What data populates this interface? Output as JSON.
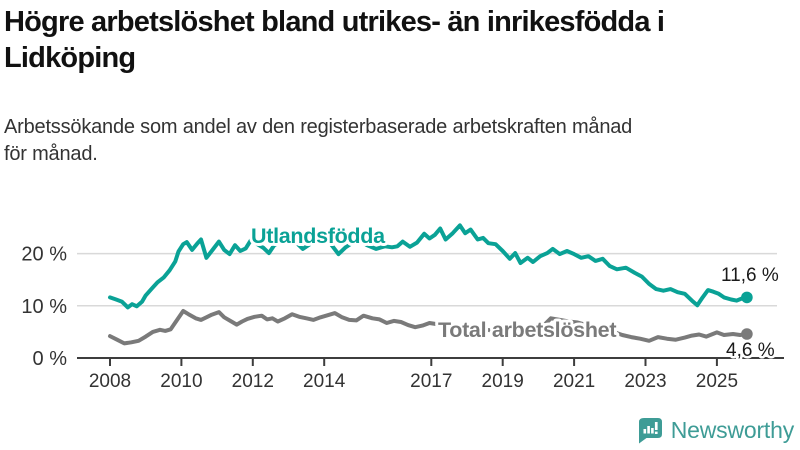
{
  "header": {
    "title_lines": [
      "Högre arbetslöshet bland utrikes- än inrikesfödda i",
      "Lidköping"
    ],
    "subtitle_lines": [
      "Arbetssökande som andel av den registerbaserade arbetskraften månad",
      "för månad."
    ]
  },
  "chart_data": {
    "type": "line",
    "title": "Högre arbetslöshet bland utrikes- än inrikesfödda i Lidköping",
    "subtitle": "Arbetssökande som andel av den registerbaserade arbetskraften månad för månad.",
    "unit": "%",
    "xlabel": "",
    "ylabel": "",
    "x_range": [
      2008,
      2025.9
    ],
    "ylim": [
      0,
      27
    ],
    "grid": "horizontal",
    "legend_position": "inline-labels",
    "y_ticks": [
      {
        "label": "0 %",
        "value": 0
      },
      {
        "label": "10 %",
        "value": 10
      },
      {
        "label": "20 %",
        "value": 20
      }
    ],
    "x_ticks": [
      {
        "label": "2008",
        "year": 2008
      },
      {
        "label": "2010",
        "year": 2010
      },
      {
        "label": "2012",
        "year": 2012
      },
      {
        "label": "2014",
        "year": 2014
      },
      {
        "label": "2017",
        "year": 2017
      },
      {
        "label": "2019",
        "year": 2019
      },
      {
        "label": "2021",
        "year": 2021
      },
      {
        "label": "2023",
        "year": 2023
      },
      {
        "label": "2025",
        "year": 2025
      }
    ],
    "series": [
      {
        "name": "total-arbetsloshet",
        "label": "Total arbetslöshet",
        "color": "#7a7a7a",
        "end_label": "4,6 %",
        "end_value": 4.6,
        "points": [
          [
            2008.0,
            4.2
          ],
          [
            2008.2,
            3.5
          ],
          [
            2008.4,
            2.8
          ],
          [
            2008.6,
            3.0
          ],
          [
            2008.8,
            3.3
          ],
          [
            2009.0,
            4.1
          ],
          [
            2009.2,
            5.0
          ],
          [
            2009.4,
            5.4
          ],
          [
            2009.55,
            5.2
          ],
          [
            2009.7,
            5.5
          ],
          [
            2009.85,
            7.0
          ],
          [
            2010.05,
            9.0
          ],
          [
            2010.2,
            8.4
          ],
          [
            2010.4,
            7.6
          ],
          [
            2010.55,
            7.3
          ],
          [
            2010.7,
            7.8
          ],
          [
            2010.85,
            8.3
          ],
          [
            2011.05,
            8.8
          ],
          [
            2011.2,
            7.8
          ],
          [
            2011.4,
            7.0
          ],
          [
            2011.55,
            6.4
          ],
          [
            2011.7,
            7.0
          ],
          [
            2011.85,
            7.5
          ],
          [
            2012.05,
            7.9
          ],
          [
            2012.25,
            8.1
          ],
          [
            2012.4,
            7.4
          ],
          [
            2012.55,
            7.6
          ],
          [
            2012.7,
            7.0
          ],
          [
            2012.9,
            7.6
          ],
          [
            2013.1,
            8.4
          ],
          [
            2013.3,
            7.9
          ],
          [
            2013.5,
            7.6
          ],
          [
            2013.7,
            7.3
          ],
          [
            2013.9,
            7.8
          ],
          [
            2014.1,
            8.2
          ],
          [
            2014.3,
            8.6
          ],
          [
            2014.5,
            7.8
          ],
          [
            2014.7,
            7.3
          ],
          [
            2014.9,
            7.2
          ],
          [
            2015.1,
            8.1
          ],
          [
            2015.35,
            7.6
          ],
          [
            2015.55,
            7.4
          ],
          [
            2015.75,
            6.7
          ],
          [
            2015.95,
            7.1
          ],
          [
            2016.15,
            6.9
          ],
          [
            2016.35,
            6.3
          ],
          [
            2016.55,
            5.9
          ],
          [
            2016.75,
            6.2
          ],
          [
            2016.95,
            6.7
          ],
          [
            2017.15,
            6.5
          ],
          [
            2017.4,
            6.0
          ],
          [
            2017.65,
            5.7
          ],
          [
            2017.9,
            6.0
          ],
          [
            2018.15,
            6.1
          ],
          [
            2018.4,
            5.6
          ],
          [
            2018.65,
            5.3
          ],
          [
            2018.9,
            5.5
          ],
          [
            2019.15,
            5.4
          ],
          [
            2019.4,
            5.1
          ],
          [
            2019.65,
            5.1
          ],
          [
            2019.9,
            5.5
          ],
          [
            2020.1,
            5.9
          ],
          [
            2020.35,
            7.6
          ],
          [
            2020.6,
            7.3
          ],
          [
            2020.85,
            7.0
          ],
          [
            2021.1,
            6.8
          ],
          [
            2021.35,
            6.3
          ],
          [
            2021.6,
            5.8
          ],
          [
            2021.85,
            5.4
          ],
          [
            2022.1,
            5.0
          ],
          [
            2022.35,
            4.4
          ],
          [
            2022.6,
            4.0
          ],
          [
            2022.85,
            3.7
          ],
          [
            2023.1,
            3.3
          ],
          [
            2023.35,
            4.0
          ],
          [
            2023.6,
            3.7
          ],
          [
            2023.85,
            3.5
          ],
          [
            2024.1,
            3.9
          ],
          [
            2024.3,
            4.3
          ],
          [
            2024.5,
            4.5
          ],
          [
            2024.7,
            4.1
          ],
          [
            2025.0,
            4.9
          ],
          [
            2025.2,
            4.4
          ],
          [
            2025.45,
            4.6
          ],
          [
            2025.65,
            4.4
          ],
          [
            2025.84,
            4.6
          ]
        ]
      },
      {
        "name": "utlandsfodda",
        "label": "Utlandsfödda",
        "color": "#0aa296",
        "end_label": "11,6 %",
        "end_value": 11.6,
        "points": [
          [
            2008.0,
            11.6
          ],
          [
            2008.17,
            11.2
          ],
          [
            2008.33,
            10.8
          ],
          [
            2008.5,
            9.7
          ],
          [
            2008.62,
            10.3
          ],
          [
            2008.75,
            9.9
          ],
          [
            2008.9,
            10.8
          ],
          [
            2009.0,
            12.0
          ],
          [
            2009.17,
            13.3
          ],
          [
            2009.33,
            14.5
          ],
          [
            2009.5,
            15.4
          ],
          [
            2009.67,
            16.8
          ],
          [
            2009.83,
            18.5
          ],
          [
            2009.92,
            20.4
          ],
          [
            2010.05,
            21.8
          ],
          [
            2010.15,
            22.2
          ],
          [
            2010.3,
            20.7
          ],
          [
            2010.45,
            22.0
          ],
          [
            2010.55,
            22.7
          ],
          [
            2010.7,
            19.2
          ],
          [
            2010.85,
            20.5
          ],
          [
            2011.05,
            22.3
          ],
          [
            2011.2,
            20.7
          ],
          [
            2011.35,
            19.9
          ],
          [
            2011.5,
            21.6
          ],
          [
            2011.65,
            20.5
          ],
          [
            2011.8,
            21.0
          ],
          [
            2011.95,
            22.6
          ],
          [
            2012.1,
            21.9
          ],
          [
            2012.3,
            21.1
          ],
          [
            2012.45,
            20.1
          ],
          [
            2012.6,
            21.6
          ],
          [
            2012.8,
            22.4
          ],
          [
            2013.0,
            22.9
          ],
          [
            2013.2,
            22.2
          ],
          [
            2013.4,
            20.9
          ],
          [
            2013.6,
            21.8
          ],
          [
            2013.8,
            22.6
          ],
          [
            2014.0,
            23.0
          ],
          [
            2014.2,
            21.7
          ],
          [
            2014.4,
            19.9
          ],
          [
            2014.6,
            21.2
          ],
          [
            2014.8,
            22.1
          ],
          [
            2015.0,
            22.5
          ],
          [
            2015.2,
            21.6
          ],
          [
            2015.45,
            20.9
          ],
          [
            2015.7,
            21.4
          ],
          [
            2015.9,
            21.2
          ],
          [
            2016.05,
            21.4
          ],
          [
            2016.2,
            22.3
          ],
          [
            2016.4,
            21.3
          ],
          [
            2016.6,
            22.1
          ],
          [
            2016.8,
            23.8
          ],
          [
            2016.95,
            22.9
          ],
          [
            2017.1,
            23.6
          ],
          [
            2017.25,
            24.8
          ],
          [
            2017.4,
            22.7
          ],
          [
            2017.6,
            23.9
          ],
          [
            2017.8,
            25.4
          ],
          [
            2017.95,
            23.9
          ],
          [
            2018.1,
            24.6
          ],
          [
            2018.3,
            22.7
          ],
          [
            2018.45,
            23.0
          ],
          [
            2018.6,
            22.0
          ],
          [
            2018.8,
            21.8
          ],
          [
            2019.0,
            20.5
          ],
          [
            2019.2,
            19.0
          ],
          [
            2019.35,
            20.1
          ],
          [
            2019.5,
            18.2
          ],
          [
            2019.7,
            19.2
          ],
          [
            2019.85,
            18.4
          ],
          [
            2020.05,
            19.5
          ],
          [
            2020.25,
            20.1
          ],
          [
            2020.4,
            20.9
          ],
          [
            2020.6,
            19.9
          ],
          [
            2020.8,
            20.5
          ],
          [
            2021.0,
            19.9
          ],
          [
            2021.2,
            19.2
          ],
          [
            2021.4,
            19.5
          ],
          [
            2021.6,
            18.6
          ],
          [
            2021.8,
            19.0
          ],
          [
            2022.0,
            17.6
          ],
          [
            2022.2,
            17.0
          ],
          [
            2022.45,
            17.3
          ],
          [
            2022.7,
            16.3
          ],
          [
            2022.9,
            15.6
          ],
          [
            2023.1,
            14.2
          ],
          [
            2023.3,
            13.2
          ],
          [
            2023.5,
            12.9
          ],
          [
            2023.7,
            13.2
          ],
          [
            2023.9,
            12.6
          ],
          [
            2024.1,
            12.3
          ],
          [
            2024.3,
            11.0
          ],
          [
            2024.45,
            10.1
          ],
          [
            2024.6,
            11.6
          ],
          [
            2024.75,
            13.0
          ],
          [
            2024.9,
            12.7
          ],
          [
            2025.05,
            12.3
          ],
          [
            2025.2,
            11.6
          ],
          [
            2025.4,
            11.2
          ],
          [
            2025.55,
            11.0
          ],
          [
            2025.7,
            11.4
          ],
          [
            2025.84,
            11.6
          ]
        ]
      }
    ]
  },
  "branding": {
    "logo_text": "Newsworthy",
    "logo_color": "#3e9c96"
  }
}
